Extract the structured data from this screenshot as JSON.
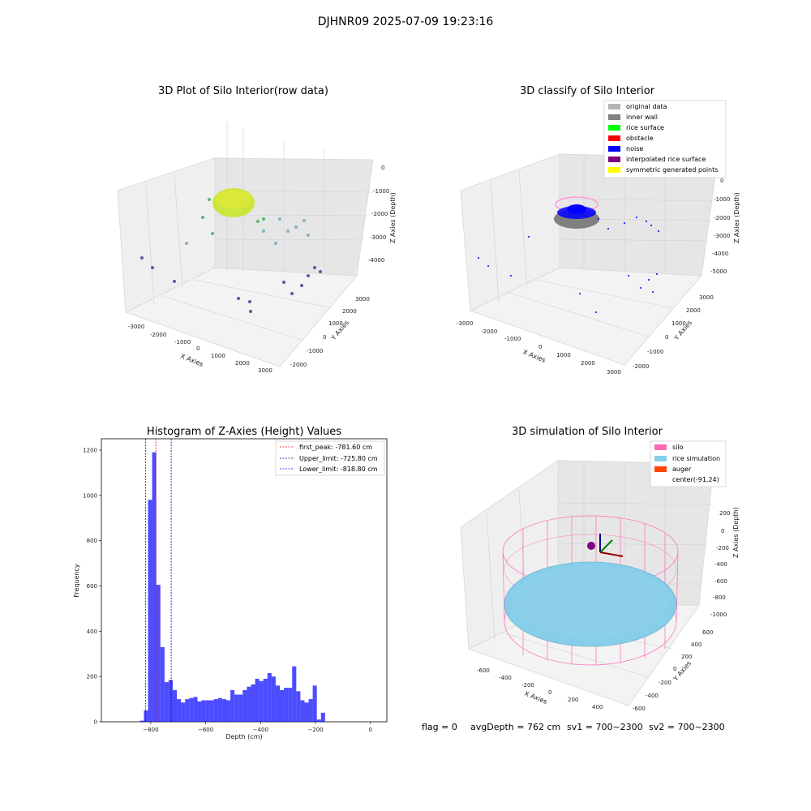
{
  "suptitle": "DJHNR09 2025-07-09 19:23:16",
  "chart_data": [
    {
      "type": "scatter",
      "title": "3D Plot of Silo Interior(row data)",
      "xlabel": "X Axies",
      "ylabel": "Y Axies",
      "zlabel": "Z Axies (Depth)",
      "xticks": [
        "-3000",
        "-2000",
        "-1000",
        "0",
        "1000",
        "2000",
        "3000"
      ],
      "yticks": [
        "-2000",
        "-1000",
        "0",
        "1000",
        "2000",
        "3000"
      ],
      "zticks": [
        "0",
        "-1000",
        "-2000",
        "-3000",
        "-4000"
      ]
    },
    {
      "type": "scatter",
      "title": "3D classify of Silo Interior",
      "xlabel": "X Axies",
      "ylabel": "Y Axies",
      "zlabel": "Z Axies (Depth)",
      "xticks": [
        "-3000",
        "-2000",
        "-1000",
        "0",
        "1000",
        "2000",
        "3000"
      ],
      "yticks": [
        "-2000",
        "-1000",
        "0",
        "1000",
        "2000",
        "3000"
      ],
      "zticks": [
        "0",
        "-1000",
        "-2000",
        "-3000",
        "-4000",
        "-5000"
      ],
      "legend": [
        {
          "label": "original data",
          "color": "#b4b4b4"
        },
        {
          "label": "inner wall",
          "color": "#808080"
        },
        {
          "label": "rice surface",
          "color": "#00ff00"
        },
        {
          "label": "obstacle",
          "color": "#ff0000"
        },
        {
          "label": "noise",
          "color": "#0000ff"
        },
        {
          "label": "interpolated rice surface",
          "color": "#800080"
        },
        {
          "label": "symmetric generated points",
          "color": "#ffff00"
        }
      ]
    },
    {
      "type": "bar",
      "title": "Histogram of Z-Axies (Height) Values",
      "xlabel": "Depth (cm)",
      "ylabel": "Frequency",
      "xlim": [
        -980,
        60
      ],
      "ylim": [
        0,
        1250
      ],
      "xticks": [
        -800,
        -600,
        -400,
        -200,
        0
      ],
      "yticks": [
        0,
        200,
        400,
        600,
        800,
        1000,
        1200
      ],
      "bin_width": 15,
      "bins": [
        {
          "x": -840,
          "v": 5
        },
        {
          "x": -825,
          "v": 50
        },
        {
          "x": -810,
          "v": 980
        },
        {
          "x": -795,
          "v": 1190
        },
        {
          "x": -780,
          "v": 605
        },
        {
          "x": -765,
          "v": 330
        },
        {
          "x": -750,
          "v": 175
        },
        {
          "x": -735,
          "v": 185
        },
        {
          "x": -720,
          "v": 140
        },
        {
          "x": -705,
          "v": 100
        },
        {
          "x": -690,
          "v": 85
        },
        {
          "x": -675,
          "v": 100
        },
        {
          "x": -660,
          "v": 105
        },
        {
          "x": -645,
          "v": 110
        },
        {
          "x": -630,
          "v": 90
        },
        {
          "x": -615,
          "v": 95
        },
        {
          "x": -600,
          "v": 95
        },
        {
          "x": -585,
          "v": 95
        },
        {
          "x": -570,
          "v": 100
        },
        {
          "x": -555,
          "v": 105
        },
        {
          "x": -540,
          "v": 100
        },
        {
          "x": -525,
          "v": 95
        },
        {
          "x": -510,
          "v": 140
        },
        {
          "x": -495,
          "v": 120
        },
        {
          "x": -480,
          "v": 120
        },
        {
          "x": -465,
          "v": 140
        },
        {
          "x": -450,
          "v": 155
        },
        {
          "x": -435,
          "v": 165
        },
        {
          "x": -420,
          "v": 190
        },
        {
          "x": -405,
          "v": 180
        },
        {
          "x": -390,
          "v": 190
        },
        {
          "x": -375,
          "v": 215
        },
        {
          "x": -360,
          "v": 200
        },
        {
          "x": -345,
          "v": 160
        },
        {
          "x": -330,
          "v": 140
        },
        {
          "x": -315,
          "v": 150
        },
        {
          "x": -300,
          "v": 150
        },
        {
          "x": -285,
          "v": 245
        },
        {
          "x": -270,
          "v": 135
        },
        {
          "x": -255,
          "v": 95
        },
        {
          "x": -240,
          "v": 85
        },
        {
          "x": -225,
          "v": 100
        },
        {
          "x": -210,
          "v": 160
        },
        {
          "x": -195,
          "v": 10
        },
        {
          "x": -180,
          "v": 40
        }
      ],
      "vlines": [
        {
          "x": -781.6,
          "label": "first_peak: -781.60 cm",
          "color": "#ff0000"
        },
        {
          "x": -725.8,
          "label": "Upper_limit: -725.80 cm",
          "color": "#00008b"
        },
        {
          "x": -818.8,
          "label": "Lower_limit: -818.80 cm",
          "color": "#0000ff"
        }
      ]
    },
    {
      "type": "scatter",
      "title": "3D simulation of Silo Interior",
      "xlabel": "X Axies",
      "ylabel": "Y Axies",
      "zlabel": "Z Axies (Depth)",
      "xticks": [
        "-600",
        "-400",
        "-200",
        "0",
        "200",
        "400"
      ],
      "yticks": [
        "-600",
        "-400",
        "-200",
        "0",
        "200",
        "400",
        "600"
      ],
      "zticks": [
        "200",
        "0",
        "-200",
        "-400",
        "-600",
        "-800",
        "-1000"
      ],
      "legend": [
        {
          "label": "silo",
          "color": "#ff69b4"
        },
        {
          "label": "rice simulation",
          "color": "#87ceeb"
        },
        {
          "label": "auger",
          "color": "#ff4500"
        },
        {
          "label": "center(-91,24)",
          "color": "#ffffff"
        }
      ]
    }
  ],
  "footer": {
    "flag": "flag = 0",
    "avg": "avgDepth = 762 cm",
    "sv1": "sv1 = 700~2300",
    "sv2": "sv2 = 700~2300"
  }
}
